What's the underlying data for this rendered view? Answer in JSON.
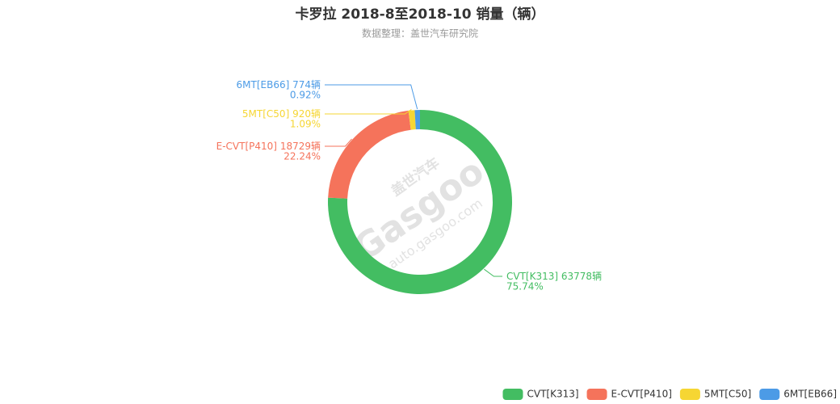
{
  "chart_data": {
    "type": "pie",
    "title": "卡罗拉 2018-8至2018-10 销量（辆）",
    "subtitle": "数据整理：盖世汽车研究院",
    "watermark": [
      "盖世汽车",
      "Gasgoo",
      "auto.gasgoo.com"
    ],
    "categories": [
      "CVT[K313]",
      "E-CVT[P410]",
      "5MT[C50]",
      "6MT[EB66]"
    ],
    "values": [
      75.74,
      22.24,
      1.09,
      0.92
    ],
    "value_labels": [
      "75.74%",
      "22.24%",
      "1.09%",
      "0.92%"
    ],
    "counts": [
      63778,
      18729,
      920,
      774
    ],
    "count_labels": [
      "63778辆",
      "18729辆",
      "920辆",
      "774辆"
    ],
    "colors": [
      "#43bd62",
      "#f5735b",
      "#f6d633",
      "#4c9be6"
    ]
  }
}
